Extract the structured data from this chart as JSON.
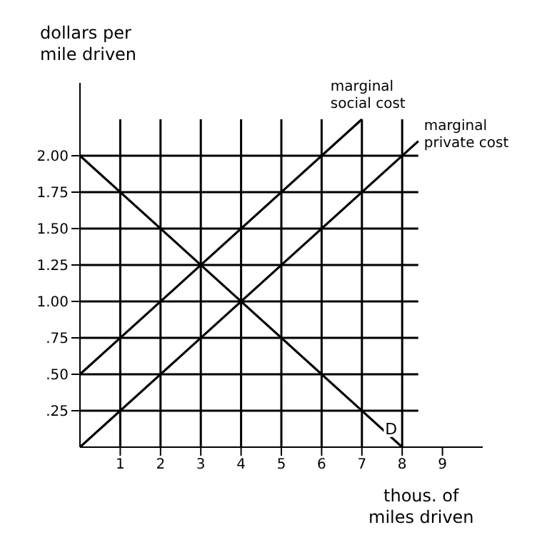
{
  "chart_data": {
    "type": "line",
    "xlabel": "thous. of miles driven",
    "ylabel": "dollars per mile driven",
    "xlim": [
      0,
      10
    ],
    "xticks": [
      1,
      2,
      3,
      4,
      5,
      6,
      7,
      8,
      9
    ],
    "ylim": [
      0,
      2.5
    ],
    "yticks": [
      {
        "value": 0.25,
        "label": ".25"
      },
      {
        "value": 0.5,
        "label": ".50"
      },
      {
        "value": 0.75,
        "label": ".75"
      },
      {
        "value": 1,
        "label": "1.00"
      },
      {
        "value": 1.25,
        "label": "1.25"
      },
      {
        "value": 1.5,
        "label": "1.50"
      },
      {
        "value": 1.75,
        "label": "1.75"
      },
      {
        "value": 2,
        "label": "2.00"
      }
    ],
    "grid": true,
    "marker": "none",
    "line_style": "solid",
    "series": [
      {
        "name": "D",
        "color": "#000000",
        "x": [
          0,
          8
        ],
        "values": [
          2,
          0
        ]
      },
      {
        "name": "marginal social cost",
        "color": "#000000",
        "x": [
          0,
          7
        ],
        "values": [
          0.5,
          2.25
        ]
      },
      {
        "name": "marginal private cost",
        "color": "#000000",
        "x": [
          0,
          8.4
        ],
        "values": [
          0,
          2.1
        ]
      }
    ]
  }
}
